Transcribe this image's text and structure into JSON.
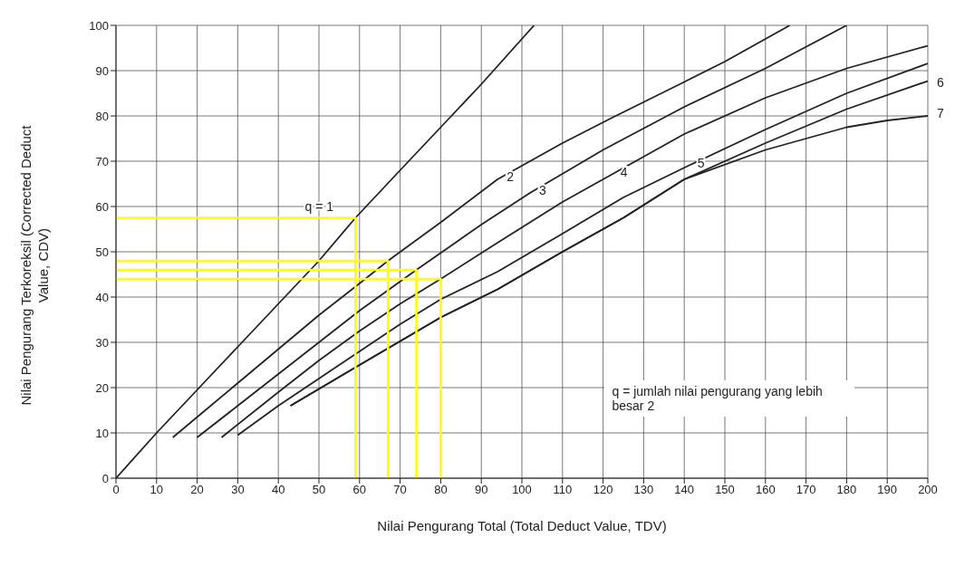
{
  "chart_data": {
    "type": "line",
    "xlabel": "Nilai Pengurang Total (Total Deduct Value, TDV)",
    "ylabel": "Nilai Pengurang Terkoreksil (Corrected Deduct Value, CDV)",
    "xlim": [
      0,
      200
    ],
    "xticks": [
      0,
      10,
      20,
      30,
      40,
      50,
      60,
      70,
      80,
      90,
      100,
      110,
      120,
      130,
      140,
      150,
      160,
      170,
      180,
      190,
      200
    ],
    "ylim": [
      0,
      100
    ],
    "yticks": [
      0,
      10,
      20,
      30,
      40,
      50,
      60,
      70,
      80,
      90,
      100
    ],
    "grid": true,
    "legend": false,
    "marker": "none",
    "line_style": "solid",
    "annotations": [
      "q = jumlah nilai pengurang yang lebih besar 2"
    ],
    "series": [
      {
        "name": "q = 1",
        "color": "#222222",
        "x": [
          0,
          10,
          20,
          30,
          40,
          50,
          59,
          70,
          80,
          90,
          103
        ],
        "values": [
          0,
          10,
          19.5,
          29,
          38.5,
          48,
          57.5,
          68,
          77.5,
          87,
          100
        ]
      },
      {
        "name": "2",
        "color": "#222222",
        "x": [
          14,
          20,
          30,
          40,
          50,
          60,
          67,
          80,
          94,
          110,
          122,
          140,
          150,
          166
        ],
        "values": [
          9,
          13.5,
          21,
          28.5,
          36,
          43,
          48,
          56.5,
          66,
          74,
          79.5,
          87.5,
          92,
          100
        ]
      },
      {
        "name": "3",
        "color": "#222222",
        "x": [
          20,
          30,
          40,
          50,
          60,
          74,
          90,
          102,
          120,
          140,
          160,
          180
        ],
        "values": [
          9,
          16,
          23,
          30,
          37,
          46,
          56,
          63,
          72.5,
          82,
          90.5,
          100
        ]
      },
      {
        "name": "4",
        "color": "#222222",
        "x": [
          26,
          40,
          50,
          60,
          70,
          80,
          94,
          110,
          122,
          140,
          160,
          180,
          200
        ],
        "values": [
          9,
          19,
          26,
          32.5,
          38.5,
          44,
          52,
          61,
          67,
          76,
          84,
          90.5,
          95.5
        ]
      },
      {
        "name": "5",
        "color": "#222222",
        "x": [
          30,
          40,
          50,
          60,
          70,
          80,
          94,
          110,
          125,
          141,
          160,
          180,
          200
        ],
        "values": [
          9.5,
          16,
          22,
          28,
          34,
          39.5,
          45.6,
          54,
          62,
          69,
          77,
          85,
          91.6
        ]
      },
      {
        "name": "6",
        "color": "#222222",
        "x": [
          43,
          60,
          80,
          94,
          110,
          125,
          140,
          160,
          180,
          200
        ],
        "values": [
          16,
          25,
          35.5,
          41.7,
          50,
          57.5,
          66,
          74,
          81.5,
          87.7
        ]
      },
      {
        "name": "7",
        "color": "#222222",
        "x": [
          43,
          60,
          80,
          94,
          110,
          125,
          140,
          160,
          180,
          190,
          200
        ],
        "values": [
          16,
          25,
          35.5,
          41.7,
          50,
          57.5,
          66,
          72.5,
          77.5,
          79,
          80
        ]
      },
      {
        "color": "#ffff00",
        "x": [
          0,
          59,
          59
        ],
        "values": [
          57.5,
          57.5,
          0
        ]
      },
      {
        "color": "#ffff00",
        "x": [
          0,
          67,
          67
        ],
        "values": [
          48,
          48,
          0
        ]
      },
      {
        "color": "#ffff00",
        "x": [
          0,
          74,
          74
        ],
        "values": [
          46,
          46,
          0
        ]
      },
      {
        "color": "#ffff00",
        "x": [
          0,
          80,
          80
        ],
        "values": [
          44,
          44,
          0
        ]
      }
    ]
  }
}
